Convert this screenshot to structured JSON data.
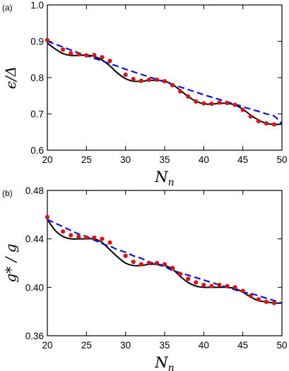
{
  "chart_data": [
    {
      "type": "line",
      "panel_label": "(a)",
      "xlabel_main": "N",
      "xlabel_sub": "n",
      "ylabel_main": "ϵ",
      "ylabel_rest": "/Δ",
      "xlim": [
        20,
        50
      ],
      "ylim": [
        0.6,
        1.0
      ],
      "xticks": [
        20,
        25,
        30,
        35,
        40,
        45,
        50
      ],
      "yticks": [
        0.6,
        0.7,
        0.8,
        0.9,
        1.0
      ],
      "ytick_labels": [
        "0.6",
        "0.7",
        "0.8",
        "0.9",
        "1.0"
      ],
      "series": [
        {
          "style": "solid",
          "color": "#000000",
          "x": [
            20,
            21,
            22,
            23,
            24,
            25,
            26,
            27,
            28,
            29,
            30,
            31,
            32,
            33,
            34,
            35,
            36,
            37,
            38,
            39,
            40,
            41,
            42,
            43,
            44,
            45,
            46,
            47,
            48,
            49,
            50
          ],
          "y": [
            0.895,
            0.879,
            0.866,
            0.861,
            0.861,
            0.862,
            0.858,
            0.848,
            0.832,
            0.812,
            0.797,
            0.79,
            0.79,
            0.792,
            0.793,
            0.79,
            0.781,
            0.765,
            0.748,
            0.735,
            0.728,
            0.727,
            0.729,
            0.729,
            0.725,
            0.713,
            0.697,
            0.683,
            0.674,
            0.671,
            0.672
          ]
        },
        {
          "style": "dashed",
          "color": "#1010dd",
          "x": [
            20,
            21,
            22,
            23,
            24,
            25,
            26,
            27,
            28,
            29,
            30,
            31,
            32,
            33,
            34,
            35,
            36,
            37,
            38,
            39,
            40,
            41,
            42,
            43,
            44,
            45,
            46,
            47,
            48,
            49,
            50
          ],
          "y": [
            0.9,
            0.892,
            0.884,
            0.876,
            0.868,
            0.861,
            0.853,
            0.846,
            0.838,
            0.831,
            0.823,
            0.816,
            0.809,
            0.802,
            0.795,
            0.788,
            0.781,
            0.774,
            0.767,
            0.76,
            0.753,
            0.746,
            0.74,
            0.733,
            0.727,
            0.72,
            0.713,
            0.707,
            0.7,
            0.694,
            0.673
          ]
        },
        {
          "style": "dots",
          "color": "#dd1111",
          "x": [
            20,
            22,
            23,
            24,
            25,
            26,
            27,
            28,
            30,
            31,
            32,
            33,
            34,
            35,
            36,
            37,
            38,
            39,
            40,
            41,
            42,
            43,
            44,
            45,
            46,
            47,
            48,
            49
          ],
          "y": [
            0.903,
            0.877,
            0.867,
            0.864,
            0.861,
            0.862,
            0.856,
            0.846,
            0.808,
            0.796,
            0.791,
            0.794,
            0.794,
            0.79,
            0.779,
            0.762,
            0.748,
            0.734,
            0.729,
            0.728,
            0.731,
            0.73,
            0.725,
            0.711,
            0.693,
            0.68,
            0.674,
            0.671
          ]
        }
      ]
    },
    {
      "type": "line",
      "panel_label": "(b)",
      "xlabel_main": "N",
      "xlabel_sub": "n",
      "ylabel_main": "g",
      "ylabel_rest": "* / g",
      "xlim": [
        20,
        50
      ],
      "ylim": [
        0.36,
        0.48
      ],
      "xticks": [
        20,
        25,
        30,
        35,
        40,
        45,
        50
      ],
      "yticks": [
        0.36,
        0.4,
        0.44,
        0.48
      ],
      "ytick_labels": [
        "0.36",
        "0.40",
        "0.44",
        "0.48"
      ],
      "series": [
        {
          "style": "solid",
          "color": "#000000",
          "x": [
            20,
            21,
            22,
            23,
            24,
            25,
            26,
            27,
            28,
            29,
            30,
            31,
            32,
            33,
            34,
            35,
            36,
            37,
            38,
            39,
            40,
            41,
            42,
            43,
            44,
            45,
            46,
            47,
            48,
            49,
            50
          ],
          "y": [
            0.456,
            0.447,
            0.442,
            0.44,
            0.44,
            0.44,
            0.44,
            0.437,
            0.431,
            0.425,
            0.42,
            0.418,
            0.418,
            0.419,
            0.419,
            0.418,
            0.415,
            0.409,
            0.404,
            0.401,
            0.4,
            0.4,
            0.4,
            0.4,
            0.399,
            0.396,
            0.392,
            0.389,
            0.388,
            0.387,
            0.387
          ]
        },
        {
          "style": "dashed",
          "color": "#1010dd",
          "x": [
            20,
            21,
            22,
            23,
            24,
            25,
            26,
            27,
            28,
            29,
            30,
            31,
            32,
            33,
            34,
            35,
            36,
            37,
            38,
            39,
            40,
            41,
            42,
            43,
            44,
            45,
            46,
            47,
            48,
            49,
            50
          ],
          "y": [
            0.456,
            0.453,
            0.45,
            0.447,
            0.444,
            0.442,
            0.439,
            0.436,
            0.434,
            0.431,
            0.429,
            0.426,
            0.424,
            0.421,
            0.419,
            0.417,
            0.414,
            0.412,
            0.41,
            0.408,
            0.406,
            0.404,
            0.402,
            0.4,
            0.398,
            0.396,
            0.395,
            0.393,
            0.391,
            0.389,
            0.387
          ]
        },
        {
          "style": "dots",
          "color": "#dd1111",
          "x": [
            20,
            22,
            23,
            24,
            25,
            26,
            27,
            28,
            30,
            31,
            32,
            33,
            34,
            35,
            36,
            37,
            38,
            39,
            40,
            41,
            42,
            43,
            44,
            45,
            46,
            47,
            48,
            49
          ],
          "y": [
            0.458,
            0.446,
            0.443,
            0.442,
            0.441,
            0.441,
            0.44,
            0.437,
            0.426,
            0.421,
            0.419,
            0.42,
            0.42,
            0.419,
            0.416,
            0.411,
            0.407,
            0.404,
            0.402,
            0.401,
            0.402,
            0.401,
            0.4,
            0.397,
            0.393,
            0.39,
            0.388,
            0.387
          ]
        }
      ]
    }
  ]
}
